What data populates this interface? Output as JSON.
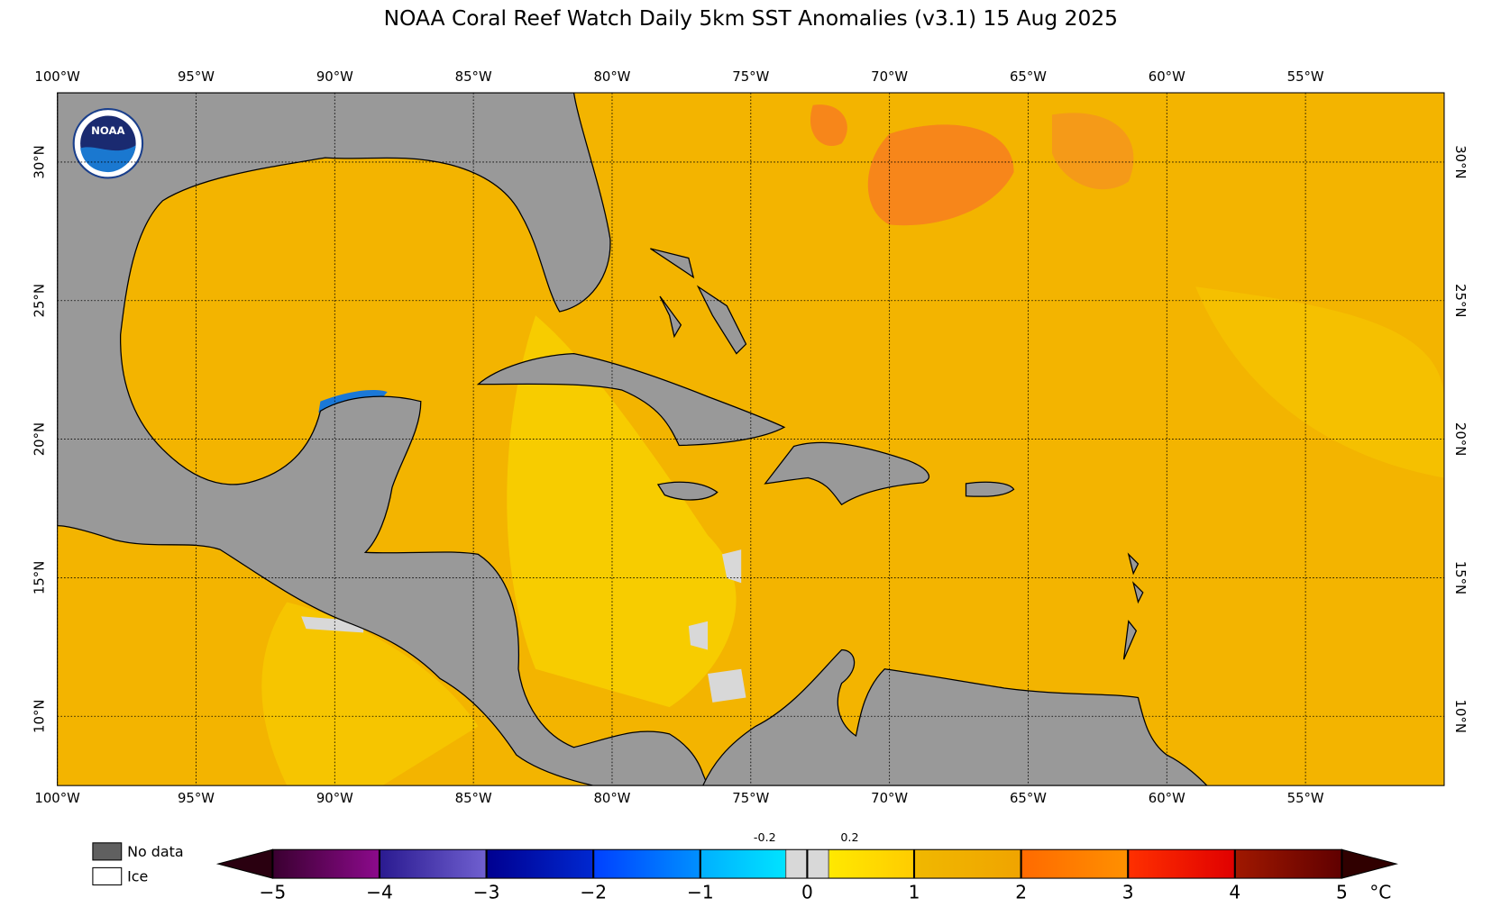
{
  "title": "NOAA Coral Reef Watch Daily 5km SST Anomalies  (v3.1)   15 Aug 2025",
  "logo": {
    "text": "NOAA"
  },
  "map": {
    "xlim": [
      -100,
      -50
    ],
    "ylim": [
      7.5,
      32.5
    ],
    "grid": true,
    "xticks": [
      {
        "value": -100,
        "label": "100°W"
      },
      {
        "value": -95,
        "label": "95°W"
      },
      {
        "value": -90,
        "label": "90°W"
      },
      {
        "value": -85,
        "label": "85°W"
      },
      {
        "value": -80,
        "label": "80°W"
      },
      {
        "value": -75,
        "label": "75°W"
      },
      {
        "value": -70,
        "label": "70°W"
      },
      {
        "value": -65,
        "label": "65°W"
      },
      {
        "value": -60,
        "label": "60°W"
      },
      {
        "value": -55,
        "label": "55°W"
      }
    ],
    "yticks": [
      {
        "value": 10,
        "label": "10°N"
      },
      {
        "value": 15,
        "label": "15°N"
      },
      {
        "value": 20,
        "label": "20°N"
      },
      {
        "value": 25,
        "label": "25°N"
      },
      {
        "value": 30,
        "label": "30°N"
      }
    ]
  },
  "colorbar": {
    "lim": [
      -5,
      5
    ],
    "unit": "°C",
    "ticks": [
      {
        "value": -5,
        "label": "−5"
      },
      {
        "value": -4,
        "label": "−4"
      },
      {
        "value": -3,
        "label": "−3"
      },
      {
        "value": -2,
        "label": "−2"
      },
      {
        "value": -1,
        "label": "−1"
      },
      0,
      1,
      2,
      3,
      4,
      5
    ],
    "minor_ticks": [
      -0.2,
      0.2
    ],
    "colors": [
      [
        "#3a0030",
        "#8c0a8c"
      ],
      [
        "#2a1a90",
        "#7060d0"
      ],
      [
        "#000090",
        "#0028d0"
      ],
      [
        "#0040ff",
        "#0090ff"
      ],
      [
        "#00b0ff",
        "#00f0ff"
      ],
      [
        "#fff000",
        "#ffcc00"
      ],
      [
        "#f0b800",
        "#f0a400"
      ],
      [
        "#ff6a00",
        "#ff9000"
      ],
      [
        "#ff3000",
        "#e00000"
      ],
      [
        "#a01800",
        "#600000"
      ]
    ],
    "extend_colors": [
      "#2a0010",
      "#300000"
    ],
    "nodata_color": "#d8d8d8"
  },
  "legend": [
    {
      "label": "No data",
      "color": "#606060"
    },
    {
      "label": "Ice",
      "color": "#ffffff"
    }
  ]
}
